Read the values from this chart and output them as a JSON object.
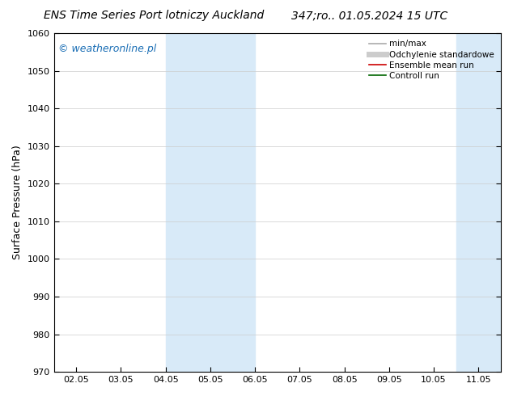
{
  "title_left": "ENS Time Series Port lotniczy Auckland",
  "title_right": "347;ro.. 01.05.2024 15 UTC",
  "ylabel": "Surface Pressure (hPa)",
  "ylim": [
    970,
    1060
  ],
  "yticks": [
    970,
    980,
    990,
    1000,
    1010,
    1020,
    1030,
    1040,
    1050,
    1060
  ],
  "x_dates": [
    "02.05",
    "03.05",
    "04.05",
    "05.05",
    "06.05",
    "07.05",
    "08.05",
    "09.05",
    "10.05",
    "11.05"
  ],
  "x_positions": [
    0,
    1,
    2,
    3,
    4,
    5,
    6,
    7,
    8,
    9
  ],
  "shaded_bands": [
    {
      "xmin": 2.0,
      "xmax": 4.0,
      "color": "#d8eaf8"
    },
    {
      "xmin": 8.5,
      "xmax": 9.8,
      "color": "#d8eaf8"
    }
  ],
  "background_color": "#ffffff",
  "plot_bg_color": "#ffffff",
  "watermark": "© weatheronline.pl",
  "watermark_color": "#1a6eb5",
  "legend_entries": [
    {
      "label": "min/max",
      "color": "#aaaaaa",
      "lw": 1.2
    },
    {
      "label": "Odchylenie standardowe",
      "color": "#cccccc",
      "lw": 5
    },
    {
      "label": "Ensemble mean run",
      "color": "#cc0000",
      "lw": 1.2
    },
    {
      "label": "Controll run",
      "color": "#006600",
      "lw": 1.2
    }
  ],
  "title_fontsize": 10,
  "ylabel_fontsize": 9,
  "tick_fontsize": 8,
  "watermark_fontsize": 9,
  "legend_fontsize": 7.5,
  "figsize": [
    6.34,
    4.9
  ],
  "dpi": 100
}
